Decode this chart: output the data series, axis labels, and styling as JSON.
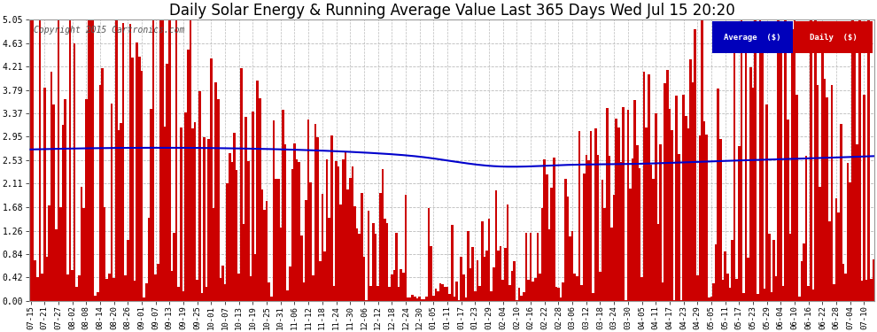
{
  "title": "Daily Solar Energy & Running Average Value Last 365 Days Wed Jul 15 20:20",
  "copyright": "Copyright 2015 Cartronics.com",
  "y_ticks": [
    0.0,
    0.42,
    0.84,
    1.26,
    1.68,
    2.11,
    2.53,
    2.95,
    3.37,
    3.79,
    4.21,
    4.63,
    5.05
  ],
  "ylim": [
    0,
    5.05
  ],
  "bar_color": "#cc0000",
  "avg_color": "#0000cc",
  "background_color": "#ffffff",
  "plot_bg_color": "#ffffff",
  "grid_color": "#bbbbbb",
  "title_fontsize": 12,
  "legend_avg_color": "#0000bb",
  "legend_daily_color": "#cc0000",
  "n_days": 365,
  "x_tick_labels": [
    "07-15",
    "07-21",
    "07-27",
    "08-02",
    "08-08",
    "08-14",
    "08-20",
    "08-26",
    "09-01",
    "09-07",
    "09-13",
    "09-19",
    "09-25",
    "10-01",
    "10-07",
    "10-13",
    "10-19",
    "10-25",
    "10-31",
    "11-06",
    "11-12",
    "11-18",
    "11-24",
    "11-30",
    "12-06",
    "12-12",
    "12-18",
    "12-24",
    "12-30",
    "01-05",
    "01-11",
    "01-17",
    "01-23",
    "01-29",
    "02-04",
    "02-10",
    "02-16",
    "02-22",
    "02-28",
    "03-06",
    "03-12",
    "03-18",
    "03-24",
    "03-30",
    "04-05",
    "04-11",
    "04-17",
    "04-23",
    "04-29",
    "05-05",
    "05-11",
    "05-17",
    "05-23",
    "05-29",
    "06-04",
    "06-10",
    "06-16",
    "06-22",
    "06-28",
    "07-04",
    "07-10"
  ],
  "avg_line_x": [
    0,
    50,
    100,
    150,
    170,
    200,
    230,
    260,
    290,
    320,
    364
  ],
  "avg_line_y": [
    2.72,
    2.75,
    2.73,
    2.65,
    2.58,
    2.42,
    2.44,
    2.46,
    2.5,
    2.54,
    2.6
  ]
}
